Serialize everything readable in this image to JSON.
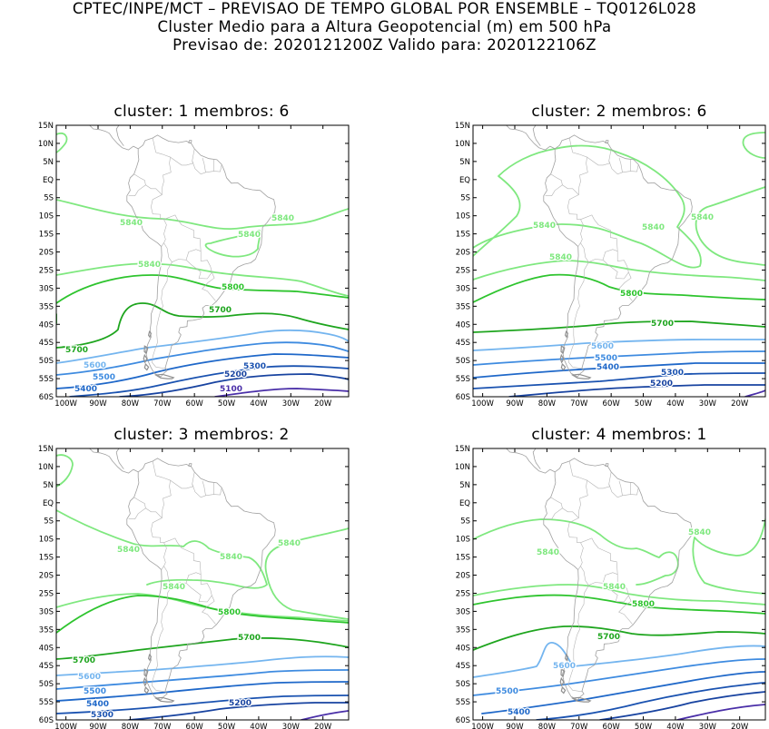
{
  "header": {
    "line1": "CPTEC/INPE/MCT – PREVISAO DE TEMPO GLOBAL POR ENSEMBLE – TQ0126L028",
    "line2": "Cluster Medio para a Altura Geopotencial (m) em 500 hPa",
    "line3": "Previsao de: 2020121200Z    Valido para: 2020122106Z"
  },
  "axes": {
    "lat_labels": [
      "15N",
      "10N",
      "5N",
      "EQ",
      "5S",
      "10S",
      "15S",
      "20S",
      "25S",
      "30S",
      "35S",
      "40S",
      "45S",
      "50S",
      "55S",
      "60S"
    ],
    "lon_labels": [
      "100W",
      "90W",
      "80W",
      "70W",
      "60W",
      "50W",
      "40W",
      "30W",
      "20W"
    ]
  },
  "colors": {
    "c5840": "#7fe87f",
    "c5800": "#2ec42e",
    "c5700": "#1ea51e",
    "c5600": "#74b5ef",
    "c5500": "#3e8be0",
    "c5400": "#1f68c9",
    "c5300": "#1a52b0",
    "c5200": "#1843a0",
    "c5100": "#4a2fa8",
    "coast": "#a0a0a0",
    "border": "#b4b4b4"
  },
  "panels": [
    {
      "title": "cluster: 1   membros: 6",
      "labels": [
        {
          "text": "5840",
          "level": "c5840"
        },
        {
          "text": "5840",
          "level": "c5840"
        },
        {
          "text": "5840",
          "level": "c5840"
        },
        {
          "text": "5840",
          "level": "c5840"
        },
        {
          "text": "5800",
          "level": "c5800"
        },
        {
          "text": "5700",
          "level": "c5700"
        },
        {
          "text": "5700",
          "level": "c5700"
        },
        {
          "text": "5600",
          "level": "c5600"
        },
        {
          "text": "5500",
          "level": "c5500"
        },
        {
          "text": "5400",
          "level": "c5400"
        },
        {
          "text": "5300",
          "level": "c5300"
        },
        {
          "text": "5200",
          "level": "c5200"
        },
        {
          "text": "5100",
          "level": "c5100"
        }
      ]
    },
    {
      "title": "cluster: 2   membros: 6",
      "labels": [
        {
          "text": "5840",
          "level": "c5840"
        },
        {
          "text": "5840",
          "level": "c5840"
        },
        {
          "text": "5840",
          "level": "c5840"
        },
        {
          "text": "5840",
          "level": "c5840"
        },
        {
          "text": "5800",
          "level": "c5800"
        },
        {
          "text": "5700",
          "level": "c5700"
        },
        {
          "text": "5600",
          "level": "c5600"
        },
        {
          "text": "5500",
          "level": "c5500"
        },
        {
          "text": "5400",
          "level": "c5400"
        },
        {
          "text": "5300",
          "level": "c5300"
        },
        {
          "text": "5200",
          "level": "c5200"
        }
      ]
    },
    {
      "title": "cluster: 3   membros: 2",
      "labels": [
        {
          "text": "5840",
          "level": "c5840"
        },
        {
          "text": "5840",
          "level": "c5840"
        },
        {
          "text": "5840",
          "level": "c5840"
        },
        {
          "text": "5840",
          "level": "c5840"
        },
        {
          "text": "5800",
          "level": "c5800"
        },
        {
          "text": "5700",
          "level": "c5700"
        },
        {
          "text": "5700",
          "level": "c5700"
        },
        {
          "text": "5600",
          "level": "c5600"
        },
        {
          "text": "5500",
          "level": "c5500"
        },
        {
          "text": "5400",
          "level": "c5400"
        },
        {
          "text": "5300",
          "level": "c5300"
        },
        {
          "text": "5200",
          "level": "c5200"
        }
      ]
    },
    {
      "title": "cluster: 4   membros: 1",
      "labels": [
        {
          "text": "5840",
          "level": "c5840"
        },
        {
          "text": "5840",
          "level": "c5840"
        },
        {
          "text": "5840",
          "level": "c5840"
        },
        {
          "text": "5800",
          "level": "c5800"
        },
        {
          "text": "5700",
          "level": "c5700"
        },
        {
          "text": "5600",
          "level": "c5600"
        },
        {
          "text": "5500",
          "level": "c5500"
        },
        {
          "text": "5400",
          "level": "c5400"
        }
      ]
    }
  ]
}
